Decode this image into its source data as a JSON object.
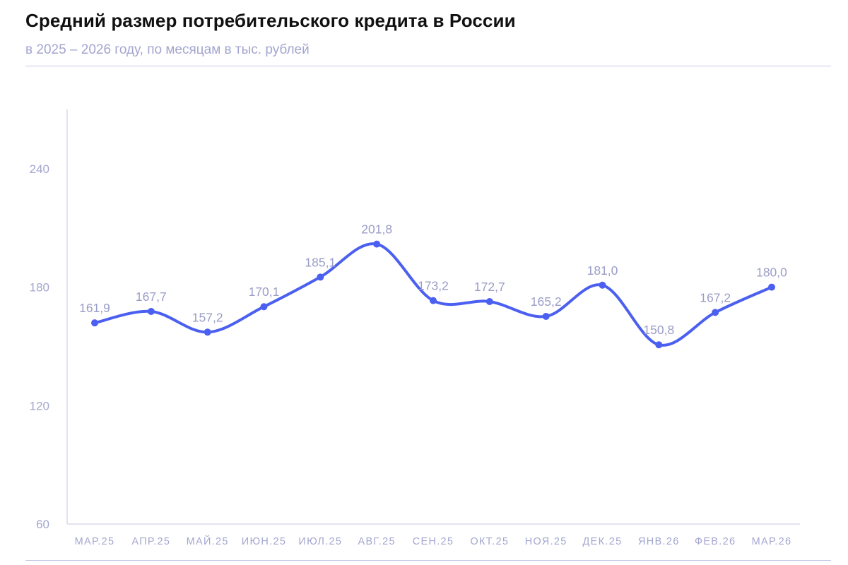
{
  "title": "Средний размер потребительского кредита в России",
  "subtitle": "в 2025 – 2026 году, по месяцам в тыс. рублей",
  "colors": {
    "line": "#4b5ff0",
    "axis_text": "#a3a6cf",
    "axis_line": "#c5c7e2",
    "label_text": "#9a9dc6",
    "title": "#111111"
  },
  "chart_data": {
    "type": "line",
    "title": "Средний размер потребительского кредита в России",
    "subtitle": "в 2025 – 2026 году, по месяцам в тыс. рублей",
    "xlabel": "",
    "ylabel": "",
    "ylim": [
      60,
      270
    ],
    "yticks": [
      "60",
      "120",
      "180",
      "240"
    ],
    "grid": false,
    "legend": "none",
    "smooth": true,
    "categories": [
      "МАР.25",
      "АПР.25",
      "МАЙ.25",
      "ИЮН.25",
      "ИЮЛ.25",
      "АВГ.25",
      "СЕН.25",
      "ОКТ.25",
      "НОЯ.25",
      "ДЕК.25",
      "ЯНВ.26",
      "ФЕВ.26",
      "МАР.26"
    ],
    "series": [
      {
        "values": [
          161.9,
          167.7,
          157.2,
          170.1,
          185.1,
          201.8,
          173.2,
          172.7,
          165.2,
          181.0,
          150.8,
          167.2,
          180.0
        ],
        "labels": [
          "161,9",
          "167,7",
          "157,2",
          "170,1",
          "185,1",
          "201,8",
          "173,2",
          "172,7",
          "165,2",
          "181,0",
          "150,8",
          "167,2",
          "180,0"
        ]
      }
    ]
  }
}
